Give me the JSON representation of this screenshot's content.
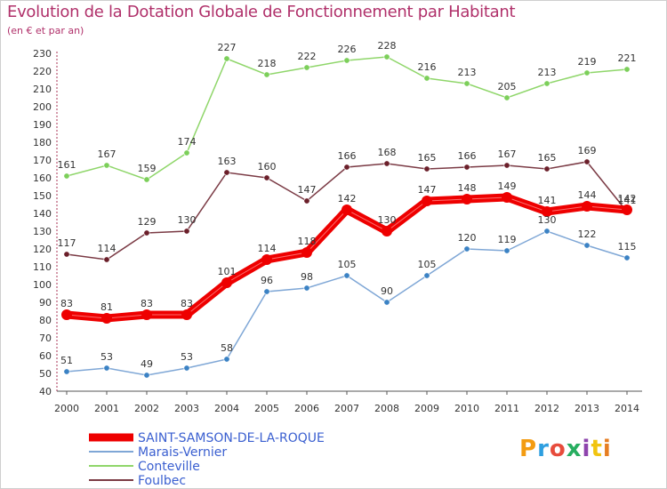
{
  "title": "Evolution de la Dotation Globale de Fonctionnement par Habitant",
  "subtitle": "(en € et par an)",
  "brand": {
    "text": "Proxiti",
    "letter_colors": [
      "#f39c12",
      "#2e9fe0",
      "#e74c3c",
      "#27ae60",
      "#8e44ad",
      "#f1c40f",
      "#e67e22"
    ]
  },
  "chart_data": {
    "type": "line",
    "title": "Evolution de la Dotation Globale de Fonctionnement par Habitant",
    "subtitle": "(en € et par an)",
    "xlabel": "",
    "ylabel": "",
    "x": [
      "2000",
      "2001",
      "2002",
      "2003",
      "2004",
      "2005",
      "2006",
      "2007",
      "2008",
      "2009",
      "2010",
      "2011",
      "2012",
      "2013",
      "2014"
    ],
    "ylim": [
      40,
      230
    ],
    "yticks": [
      40,
      50,
      60,
      70,
      80,
      90,
      100,
      110,
      120,
      130,
      140,
      150,
      160,
      170,
      180,
      190,
      200,
      210,
      220,
      230
    ],
    "grid": false,
    "legend_position": "bottom-left",
    "series": [
      {
        "name": "Conteville",
        "color": "#8fd66a",
        "marker_color": "#7ccf5a",
        "values": [
          161,
          167,
          159,
          174,
          227,
          218,
          222,
          226,
          228,
          216,
          213,
          205,
          213,
          219,
          221
        ]
      },
      {
        "name": "Foulbec",
        "color": "#7b3b45",
        "marker_color": "#6b1f2a",
        "values": [
          117,
          114,
          129,
          130,
          163,
          160,
          147,
          166,
          168,
          165,
          166,
          167,
          165,
          169,
          141
        ]
      },
      {
        "name": "Marais-Vernier",
        "color": "#7fa7d6",
        "marker_color": "#3b82c4",
        "values": [
          51,
          53,
          49,
          53,
          58,
          96,
          98,
          105,
          90,
          105,
          120,
          119,
          130,
          122,
          115
        ]
      },
      {
        "name": "SAINT-SAMSON-DE-LA-ROQUE",
        "color": "#ee0000",
        "marker_color": "#ee0000",
        "bold": true,
        "values": [
          83,
          81,
          83,
          83,
          101,
          114,
          118,
          142,
          130,
          147,
          148,
          149,
          141,
          144,
          142
        ]
      }
    ],
    "legend_order": [
      "SAINT-SAMSON-DE-LA-ROQUE",
      "Marais-Vernier",
      "Conteville",
      "Foulbec"
    ]
  }
}
